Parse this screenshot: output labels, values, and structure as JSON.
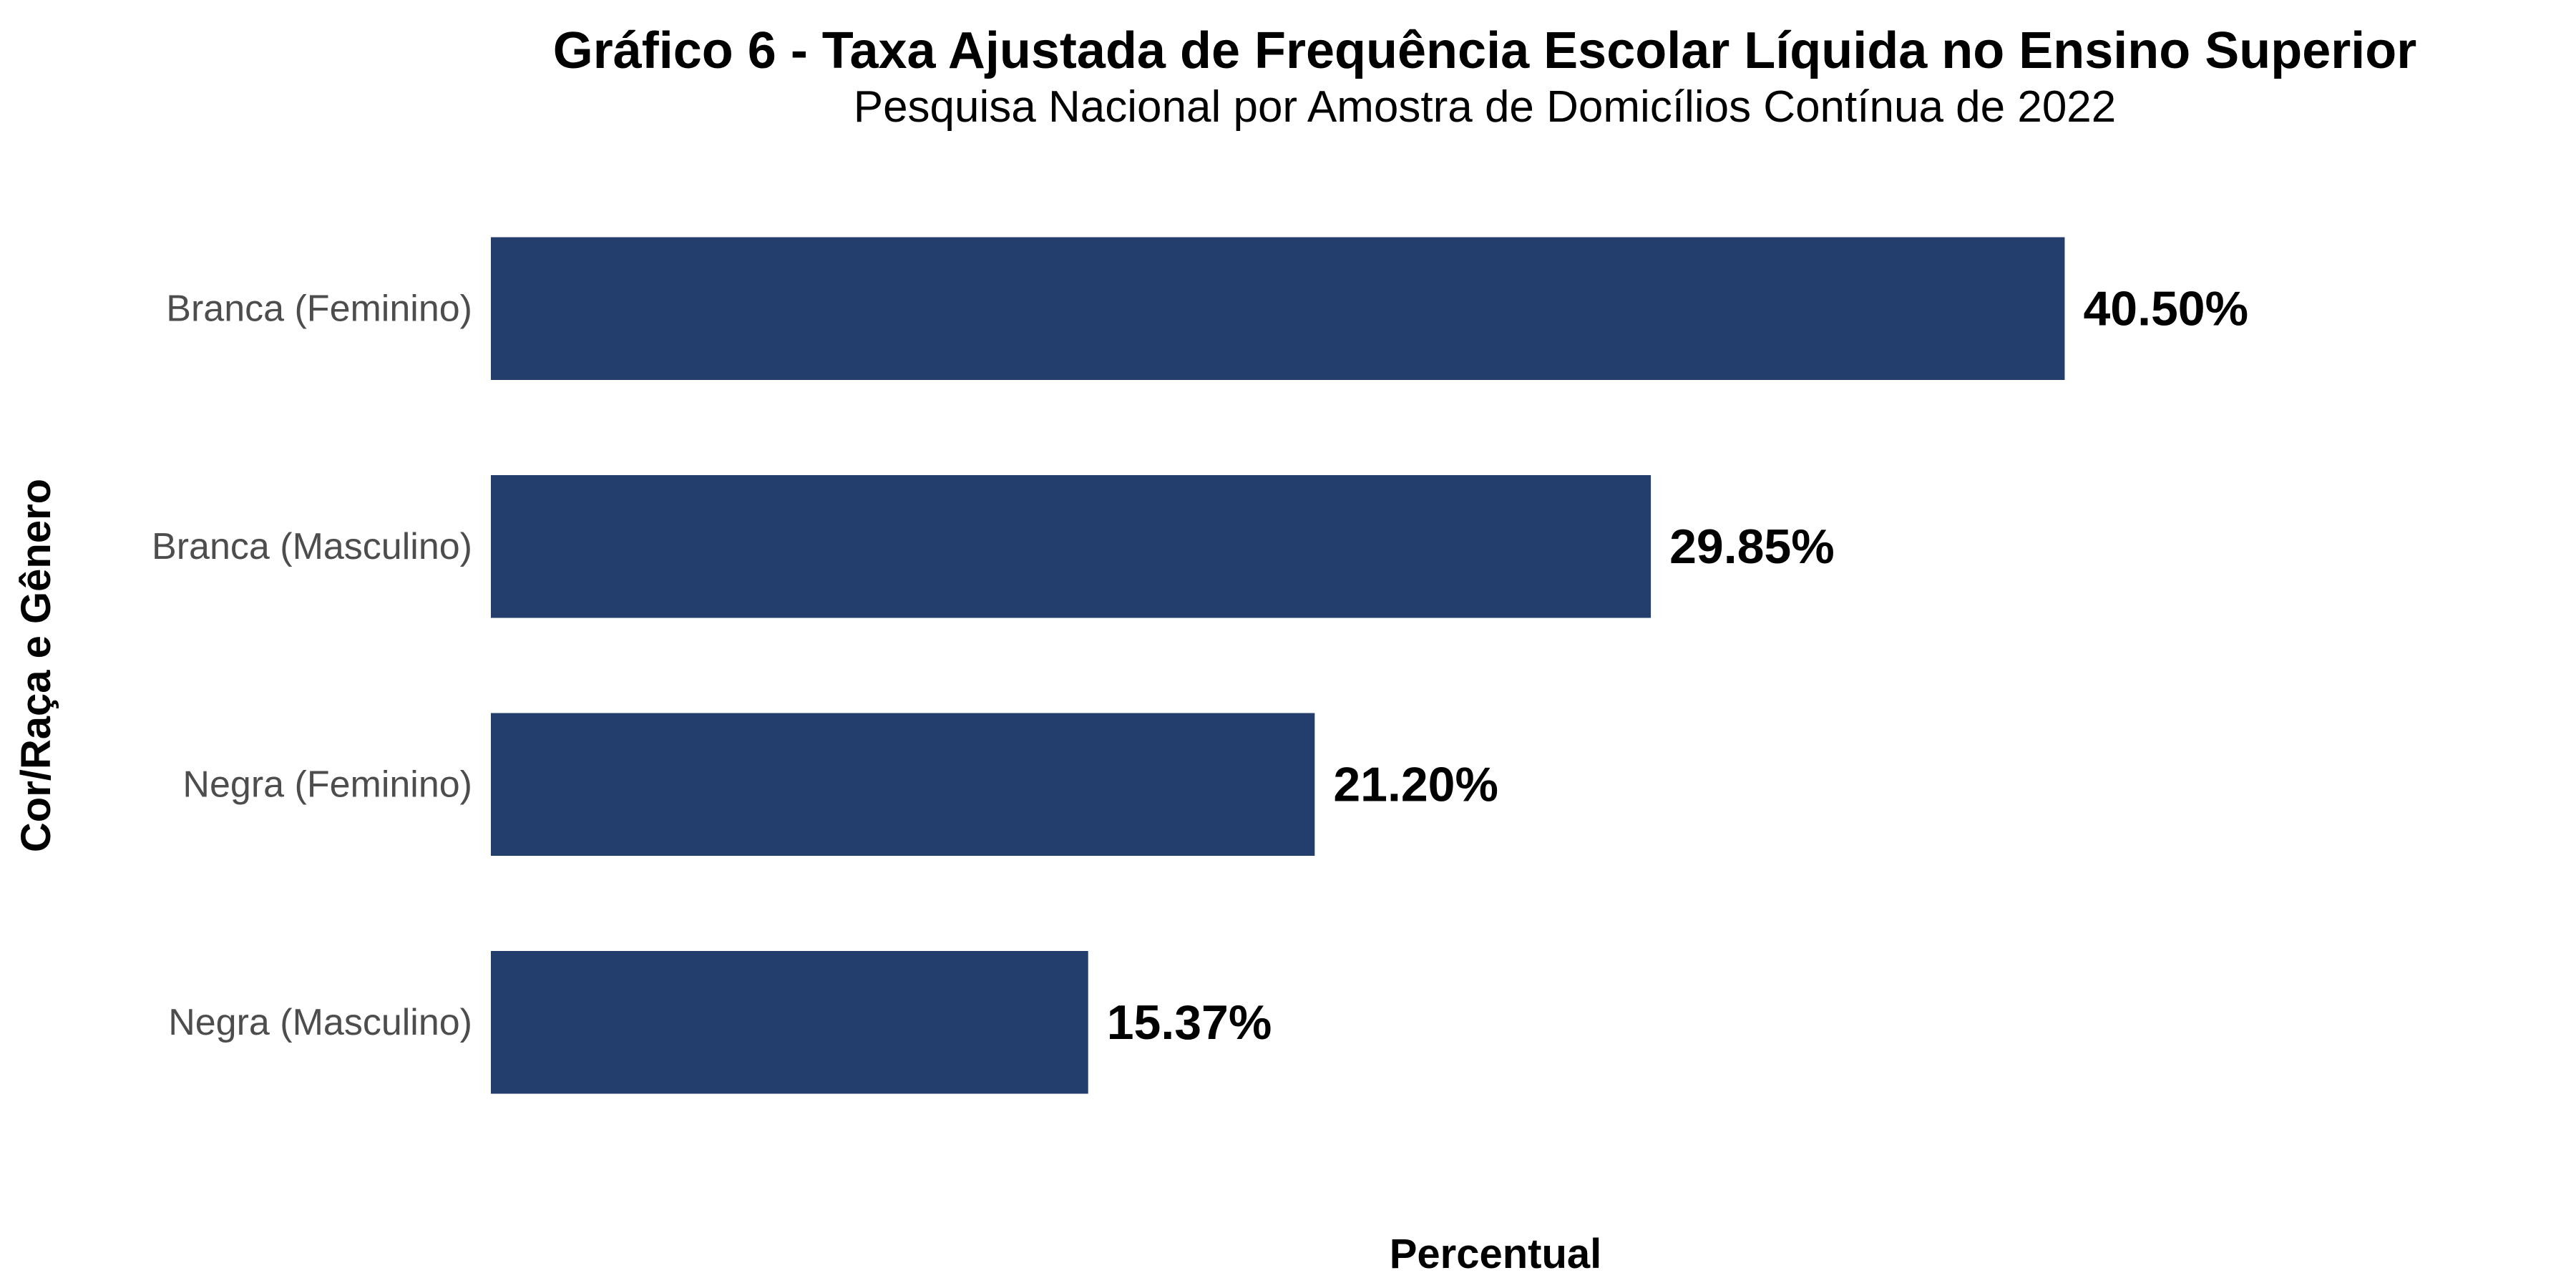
{
  "chart_data": {
    "type": "bar",
    "orientation": "horizontal",
    "title": "Gráfico 6 - Taxa Ajustada de Frequência Escolar Líquida no Ensino Superior",
    "subtitle": "Pesquisa Nacional por Amostra de Domicílios Contínua de 2022",
    "xlabel": "Percentual",
    "ylabel": "Cor/Raça e Gênero",
    "categories": [
      "Branca (Feminino)",
      "Branca (Masculino)",
      "Negra (Feminino)",
      "Negra (Masculino)"
    ],
    "values": [
      40.5,
      29.85,
      21.2,
      15.37
    ],
    "value_labels": [
      "40.50%",
      "29.85%",
      "21.20%",
      "15.37%"
    ],
    "xlim": [
      0,
      52
    ],
    "grid": false,
    "legend": "none",
    "bar_color": "#233d6c"
  }
}
